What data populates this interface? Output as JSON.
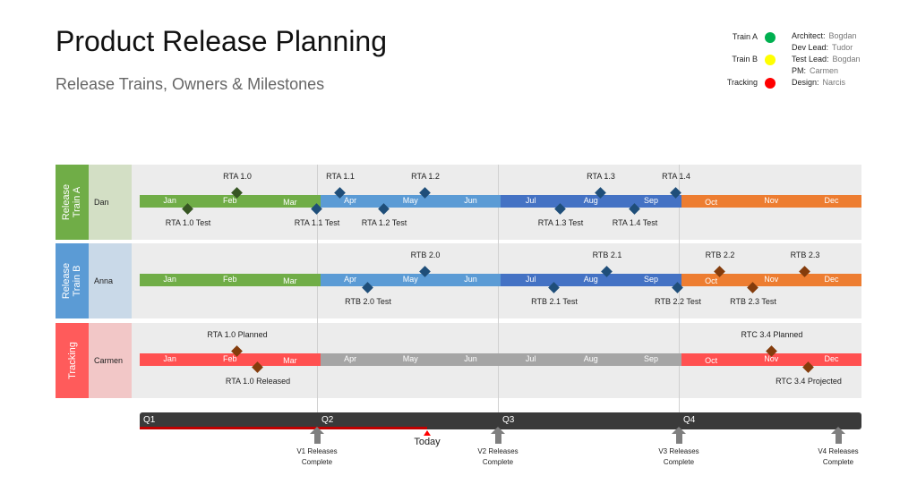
{
  "header": {
    "title": "Product Release Planning",
    "subtitle": "Release Trains, Owners & Milestones"
  },
  "legend": [
    {
      "label": "Train A",
      "color": "#00b050"
    },
    {
      "label": "Train B",
      "color": "#ffff00"
    },
    {
      "label": "Tracking",
      "color": "#ff0000"
    }
  ],
  "owners": [
    {
      "role": "Architect:",
      "name": "Bogdan"
    },
    {
      "role": "Dev Lead:",
      "name": "Tudor"
    },
    {
      "role": "Test Lead:",
      "name": "Bogdan"
    },
    {
      "role": "PM:",
      "name": "Carmen"
    },
    {
      "role": "Design:",
      "name": "Narcis"
    }
  ],
  "months": [
    "Jan",
    "Feb",
    "Mar",
    "Apr",
    "May",
    "Jun",
    "Jul",
    "Aug",
    "Sep",
    "Oct",
    "Nov",
    "Dec"
  ],
  "rows": [
    {
      "label": "Release Train A",
      "owner": "Dan",
      "color": "#70ad47",
      "owner_bg": "#d3dfc5",
      "milestones": [
        "RTA 1.0",
        "RTA 1.0 Test",
        "RTA 1.1 Test",
        "RTA 1.1",
        "RTA 1.2 Test",
        "RTA 1.2",
        "RTA 1.3 Test",
        "RTA 1.3",
        "RTA 1.4 Test",
        "RTA 1.4"
      ]
    },
    {
      "label": "Release Train B",
      "owner": "Anna",
      "color": "#5b9bd5",
      "owner_bg": "#c9d9e8",
      "milestones": [
        "RTB 2.0 Test",
        "RTB 2.0",
        "RTB 2.1 Test",
        "RTB 2.1",
        "RTB 2.2 Test",
        "RTB 2.2",
        "RTB 2.3 Test",
        "RTB 2.3"
      ]
    },
    {
      "label": "Tracking",
      "owner": "Carmen",
      "color": "#ff5b5b",
      "owner_bg": "#f2c7c7",
      "milestones": [
        "RTA 1.0 Planned",
        "RTA 1.0 Released",
        "RTC 3.4 Planned",
        "RTC 3.4 Projected"
      ]
    }
  ],
  "timeline": {
    "quarters": [
      "Q1",
      "Q2",
      "Q3",
      "Q4"
    ],
    "today": "Today",
    "progress_color": "#c00000",
    "releases": [
      {
        "l1": "V1 Releases",
        "l2": "Complete"
      },
      {
        "l1": "V2 Releases",
        "l2": "Complete"
      },
      {
        "l1": "V3 Releases",
        "l2": "Complete"
      },
      {
        "l1": "V4 Releases",
        "l2": "Complete"
      }
    ]
  }
}
